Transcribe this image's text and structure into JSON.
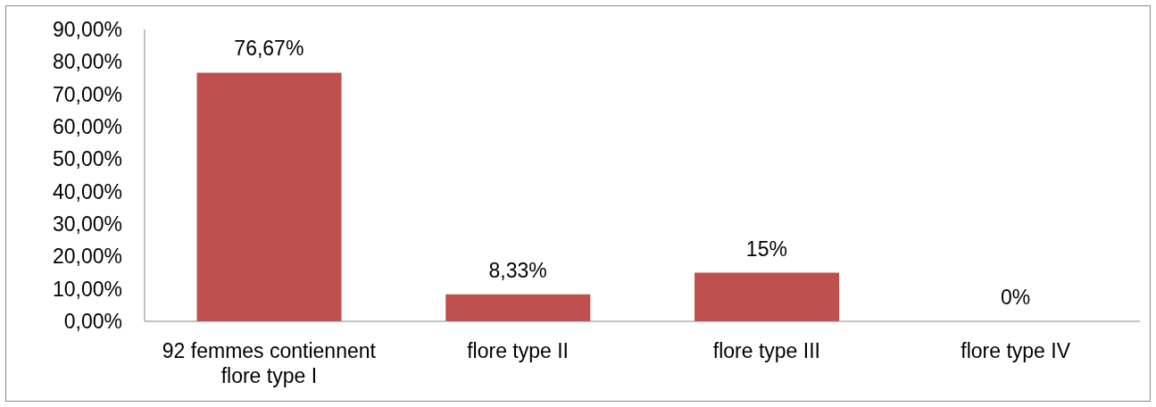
{
  "chart_data": {
    "type": "bar",
    "categories": [
      "92 femmes contiennent flore type I",
      "flore type II",
      "flore type III",
      "flore type IV"
    ],
    "values": [
      76.67,
      8.33,
      15,
      0
    ],
    "value_labels": [
      "76,67%",
      "8,33%",
      "15%",
      "0%"
    ],
    "color": "#c0504d",
    "ylim": [
      0,
      90
    ],
    "yticks": [
      {
        "value": 0,
        "label": "0,00%"
      },
      {
        "value": 10,
        "label": "10,00%"
      },
      {
        "value": 20,
        "label": "20,00%"
      },
      {
        "value": 30,
        "label": "30,00%"
      },
      {
        "value": 40,
        "label": "40,00%"
      },
      {
        "value": 50,
        "label": "50,00%"
      },
      {
        "value": 60,
        "label": "60,00%"
      },
      {
        "value": 70,
        "label": "70,00%"
      },
      {
        "value": 80,
        "label": "80,00%"
      },
      {
        "value": 90,
        "label": "90,00%"
      }
    ]
  }
}
